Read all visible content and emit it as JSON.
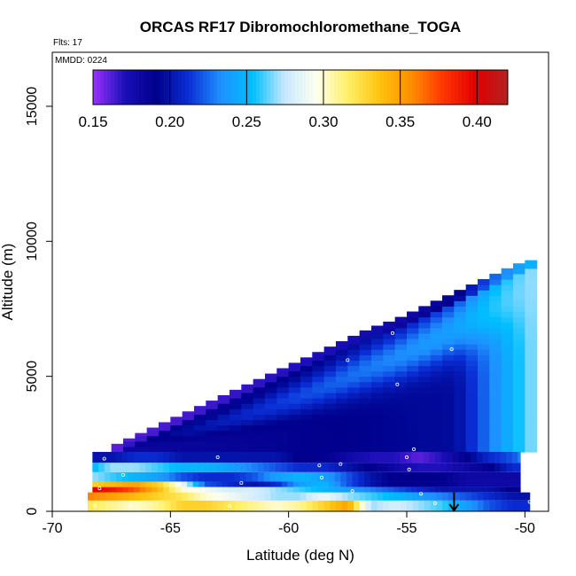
{
  "chart_data": {
    "type": "heatmap",
    "title": "ORCAS RF17 Dibromochloromethane_TOGA",
    "xlabel": "Latitude (deg N)",
    "ylabel": "Altitude (m)",
    "xlim": [
      -70,
      -49
    ],
    "ylim": [
      0,
      17000
    ],
    "x_ticks": [
      -70,
      -65,
      -60,
      -55,
      -50
    ],
    "y_ticks": [
      0,
      5000,
      10000,
      15000
    ],
    "flights_label": "Flts: 17",
    "mmdd_label": "MMDD: 0224",
    "colorbar": {
      "min": 0.15,
      "max": 0.42,
      "ticks": [
        0.15,
        0.2,
        0.25,
        0.3,
        0.35,
        0.4
      ],
      "tick_labels": [
        "0.15",
        "0.20",
        "0.25",
        "0.30",
        "0.35",
        "0.40"
      ],
      "colors": [
        "#9b30ff",
        "#1a0fb8",
        "#00008b",
        "#0a2fd6",
        "#1e90ff",
        "#00bfff",
        "#c7e8ff",
        "#fffff0",
        "#fff066",
        "#ffc20d",
        "#ff8c00",
        "#ff3300",
        "#e00000",
        "#b22222"
      ]
    },
    "envelope": {
      "x": [
        -68.5,
        -67.5,
        -66.5,
        -65.5,
        -64.5,
        -63.5,
        -62.5,
        -61.5,
        -60.5,
        -59.5,
        -58.5,
        -57.5,
        -56.5,
        -55.5,
        -54.5,
        -53.5,
        -52.5,
        -51.5,
        -50.5,
        -49.9
      ],
      "top_altitude": [
        1600,
        2400,
        2800,
        3200,
        3600,
        4000,
        4400,
        4800,
        5200,
        5600,
        6000,
        6400,
        6800,
        7100,
        7500,
        7900,
        8300,
        8700,
        9100,
        9300
      ]
    },
    "layers": [
      {
        "alt_min": 0,
        "alt_max": 400,
        "x_from": -68.5,
        "x_to": -49.8,
        "values_by_lon": [
          [
            -68.5,
            0.32
          ],
          [
            -67.5,
            0.31
          ],
          [
            -66.5,
            0.3
          ],
          [
            -65.5,
            0.31
          ],
          [
            -64.5,
            0.33
          ],
          [
            -63.5,
            0.33
          ],
          [
            -62.5,
            0.32
          ],
          [
            -61.5,
            0.31
          ],
          [
            -60.5,
            0.3
          ],
          [
            -59.5,
            0.31
          ],
          [
            -58.5,
            0.33
          ],
          [
            -57.5,
            0.35
          ],
          [
            -56.5,
            0.27
          ],
          [
            -55.5,
            0.28
          ],
          [
            -54.5,
            0.27
          ],
          [
            -53.5,
            0.26
          ],
          [
            -52.5,
            0.24
          ],
          [
            -51.5,
            0.22
          ],
          [
            -50.5,
            0.21
          ],
          [
            -49.8,
            0.21
          ]
        ]
      },
      {
        "alt_min": 400,
        "alt_max": 700,
        "x_from": -68.5,
        "x_to": -49.8,
        "values_by_lon": [
          [
            -68.5,
            0.36
          ],
          [
            -67.5,
            0.35
          ],
          [
            -66.5,
            0.34
          ],
          [
            -65.5,
            0.33
          ],
          [
            -64.5,
            0.32
          ],
          [
            -63.5,
            0.3
          ],
          [
            -62.5,
            0.29
          ],
          [
            -61.5,
            0.28
          ],
          [
            -60.5,
            0.27
          ],
          [
            -59.5,
            0.27
          ],
          [
            -58.5,
            0.29
          ],
          [
            -57.5,
            0.27
          ],
          [
            -56.5,
            0.26
          ],
          [
            -55.5,
            0.25
          ],
          [
            -54.5,
            0.24
          ],
          [
            -53.5,
            0.23
          ],
          [
            -52.5,
            0.22
          ],
          [
            -51.5,
            0.21
          ],
          [
            -50.5,
            0.2
          ],
          [
            -49.8,
            0.2
          ]
        ]
      },
      {
        "alt_min": 700,
        "alt_max": 900,
        "x_from": -68.3,
        "x_to": -50.2,
        "values_by_lon": [
          [
            -68.3,
            0.4
          ],
          [
            -67.5,
            0.39
          ],
          [
            -66.5,
            0.37
          ],
          [
            -65.5,
            0.34
          ],
          [
            -64.5,
            0.3
          ],
          [
            -63.5,
            0.29
          ],
          [
            -62.5,
            0.28
          ],
          [
            -61.5,
            0.28
          ],
          [
            -60.5,
            0.27
          ],
          [
            -59.5,
            0.26
          ],
          [
            -58.5,
            0.25
          ],
          [
            -57.5,
            0.24
          ],
          [
            -56.5,
            0.23
          ],
          [
            -55.5,
            0.22
          ],
          [
            -54.5,
            0.21
          ],
          [
            -53.5,
            0.2
          ],
          [
            -52.5,
            0.2
          ],
          [
            -51.5,
            0.2
          ],
          [
            -50.5,
            0.19
          ],
          [
            -50.2,
            0.19
          ]
        ]
      },
      {
        "alt_min": 900,
        "alt_max": 1100,
        "x_from": -68.3,
        "x_to": -50.2,
        "values_by_lon": [
          [
            -68.3,
            0.33
          ],
          [
            -67.5,
            0.34
          ],
          [
            -66.5,
            0.35
          ],
          [
            -65.5,
            0.33
          ],
          [
            -64.5,
            0.29
          ],
          [
            -63.5,
            0.22
          ],
          [
            -62.5,
            0.21
          ],
          [
            -61.5,
            0.2
          ],
          [
            -60.5,
            0.21
          ],
          [
            -59.5,
            0.24
          ],
          [
            -58.5,
            0.25
          ],
          [
            -57.5,
            0.22
          ],
          [
            -56.5,
            0.2
          ],
          [
            -55.5,
            0.19
          ],
          [
            -54.5,
            0.19
          ],
          [
            -53.5,
            0.19
          ],
          [
            -52.5,
            0.18
          ],
          [
            -51.5,
            0.18
          ],
          [
            -50.5,
            0.18
          ],
          [
            -50.2,
            0.18
          ]
        ]
      },
      {
        "alt_min": 1100,
        "alt_max": 1450,
        "x_from": -68.3,
        "x_to": -50.2,
        "values_by_lon": [
          [
            -68.3,
            0.27
          ],
          [
            -67.5,
            0.26
          ],
          [
            -66.5,
            0.25
          ],
          [
            -65.5,
            0.24
          ],
          [
            -64.5,
            0.22
          ],
          [
            -63.5,
            0.21
          ],
          [
            -62.5,
            0.21
          ],
          [
            -61.5,
            0.22
          ],
          [
            -60.5,
            0.24
          ],
          [
            -59.5,
            0.25
          ],
          [
            -58.5,
            0.24
          ],
          [
            -57.5,
            0.22
          ],
          [
            -56.5,
            0.2
          ],
          [
            -55.5,
            0.19
          ],
          [
            -54.5,
            0.19
          ],
          [
            -53.5,
            0.19
          ],
          [
            -52.5,
            0.18
          ],
          [
            -51.5,
            0.18
          ],
          [
            -50.5,
            0.18
          ],
          [
            -50.2,
            0.18
          ]
        ]
      },
      {
        "alt_min": 1450,
        "alt_max": 1800,
        "x_from": -68.3,
        "x_to": -50.2,
        "values_by_lon": [
          [
            -68.3,
            0.25
          ],
          [
            -67.5,
            0.27
          ],
          [
            -66.5,
            0.27
          ],
          [
            -65.5,
            0.26
          ],
          [
            -64.5,
            0.25
          ],
          [
            -63.5,
            0.25
          ],
          [
            -62.5,
            0.24
          ],
          [
            -61.5,
            0.23
          ],
          [
            -60.5,
            0.22
          ],
          [
            -59.5,
            0.21
          ],
          [
            -58.5,
            0.21
          ],
          [
            -57.5,
            0.2
          ],
          [
            -56.5,
            0.19
          ],
          [
            -55.5,
            0.18
          ],
          [
            -54.5,
            0.17
          ],
          [
            -53.5,
            0.17
          ],
          [
            -52.5,
            0.18
          ],
          [
            -51.5,
            0.19
          ],
          [
            -50.5,
            0.21
          ],
          [
            -50.2,
            0.21
          ]
        ]
      },
      {
        "alt_min": 1800,
        "alt_max": 2200,
        "x_from": -68.3,
        "x_to": -50.2,
        "values_by_lon": [
          [
            -68.3,
            0.2
          ],
          [
            -67.5,
            0.2
          ],
          [
            -66.5,
            0.21
          ],
          [
            -65.5,
            0.21
          ],
          [
            -64.5,
            0.2
          ],
          [
            -63.5,
            0.2
          ],
          [
            -62.5,
            0.2
          ],
          [
            -61.5,
            0.2
          ],
          [
            -60.5,
            0.2
          ],
          [
            -59.5,
            0.19
          ],
          [
            -58.5,
            0.19
          ],
          [
            -57.5,
            0.18
          ],
          [
            -56.5,
            0.17
          ],
          [
            -55.5,
            0.17
          ],
          [
            -54.5,
            0.16
          ],
          [
            -53.5,
            0.17
          ],
          [
            -52.5,
            0.19
          ],
          [
            -51.5,
            0.21
          ],
          [
            -50.5,
            0.22
          ],
          [
            -50.2,
            0.23
          ]
        ]
      }
    ],
    "upper_fill": {
      "description_values": {
        "left": 0.18,
        "center": 0.2,
        "ridge": 0.25,
        "right_edge": 0.27
      }
    },
    "sample_points": [
      {
        "lat": -67.8,
        "alt": 1950
      },
      {
        "lat": -63.0,
        "alt": 2000
      },
      {
        "lat": -58.7,
        "alt": 1700
      },
      {
        "lat": -57.8,
        "alt": 1750
      },
      {
        "lat": -55.0,
        "alt": 2000
      },
      {
        "lat": -54.7,
        "alt": 2300
      },
      {
        "lat": -54.9,
        "alt": 1550
      },
      {
        "lat": -58.6,
        "alt": 1250
      },
      {
        "lat": -62.0,
        "alt": 1050
      },
      {
        "lat": -67.0,
        "alt": 1350
      },
      {
        "lat": -68.0,
        "alt": 850
      },
      {
        "lat": -57.3,
        "alt": 750
      },
      {
        "lat": -54.4,
        "alt": 650
      },
      {
        "lat": -53.8,
        "alt": 300
      },
      {
        "lat": -49.8,
        "alt": 350
      },
      {
        "lat": -66.7,
        "alt": 200
      },
      {
        "lat": -62.5,
        "alt": 200
      },
      {
        "lat": -68.2,
        "alt": 200
      },
      {
        "lat": -57.5,
        "alt": 5600
      },
      {
        "lat": -55.6,
        "alt": 6600
      },
      {
        "lat": -53.1,
        "alt": 6000
      },
      {
        "lat": -55.4,
        "alt": 4700
      }
    ],
    "arrow": {
      "lat": -53.0,
      "alt_top": 700,
      "alt_bottom": 0
    }
  }
}
